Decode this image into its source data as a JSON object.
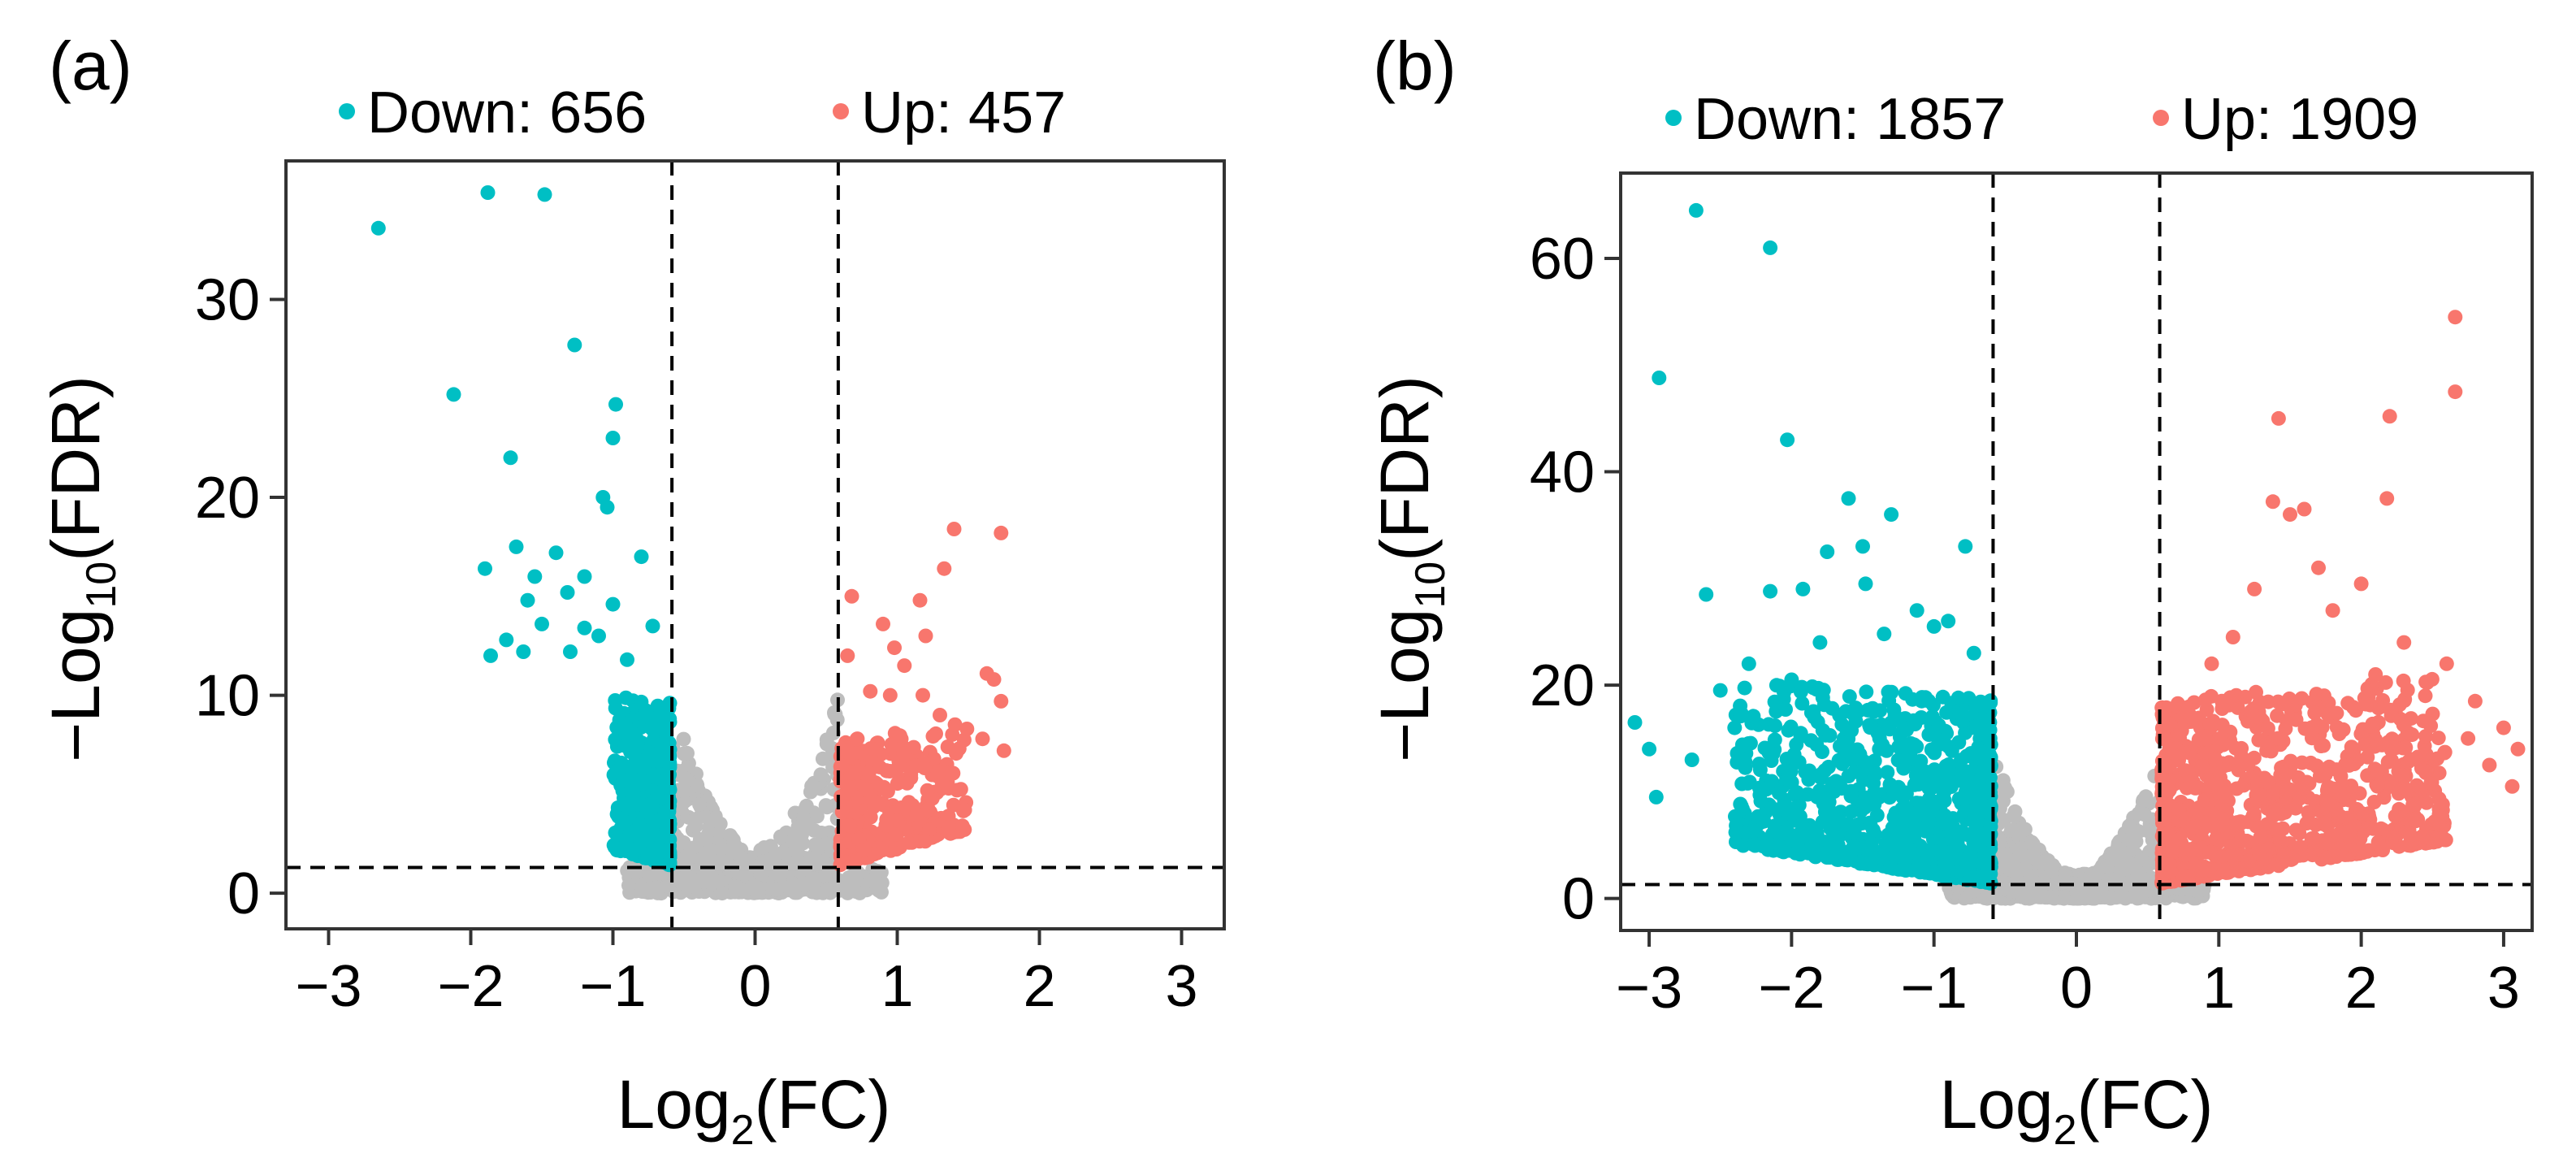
{
  "colors": {
    "down": "#00BFC4",
    "up": "#F8766D",
    "ns": "#BDBDBD"
  },
  "chart_data": [
    {
      "type": "scatter",
      "subtype": "volcano",
      "panel_label": "(a)",
      "legend": {
        "placement": "top",
        "down_label": "Down: 656",
        "up_label": "Up: 457"
      },
      "counts": {
        "down": 656,
        "up": 457
      },
      "xlabel": {
        "main": "Log",
        "sub": "2",
        "tail": "(FC)"
      },
      "ylabel": {
        "main": "−Log",
        "sub": "10",
        "tail": "(FDR)"
      },
      "xlim": [
        -3.3,
        3.3
      ],
      "ylim": [
        -1.8,
        37
      ],
      "xticks": [
        -3,
        -2,
        -1,
        0,
        1,
        2,
        3
      ],
      "xtick_labels": [
        "−3",
        "−2",
        "−1",
        "0",
        "1",
        "2",
        "3"
      ],
      "yticks": [
        0,
        10,
        20,
        30
      ],
      "ytick_labels": [
        "0",
        "10",
        "20",
        "30"
      ],
      "thresholds": {
        "log2fc": [
          -0.585,
          0.585
        ],
        "neg_log10_fdr": 1.3
      },
      "grid": false,
      "series": [
        {
          "name": "Down",
          "points": [
            [
              -2.65,
              33.6
            ],
            [
              -1.88,
              35.4
            ],
            [
              -1.48,
              35.3
            ],
            [
              -2.12,
              25.2
            ],
            [
              -1.27,
              27.7
            ],
            [
              -0.98,
              24.7
            ],
            [
              -1.0,
              23.0
            ],
            [
              -1.72,
              22.0
            ],
            [
              -1.07,
              20.0
            ],
            [
              -1.04,
              19.5
            ],
            [
              -0.8,
              17.0
            ],
            [
              -1.68,
              17.5
            ],
            [
              -1.9,
              16.4
            ],
            [
              -1.4,
              17.2
            ],
            [
              -1.2,
              16.0
            ],
            [
              -1.55,
              16.0
            ],
            [
              -1.32,
              15.2
            ],
            [
              -1.0,
              14.6
            ],
            [
              -0.72,
              13.5
            ],
            [
              -1.86,
              12.0
            ],
            [
              -1.63,
              12.2
            ],
            [
              -1.2,
              13.4
            ],
            [
              -1.1,
              13.0
            ],
            [
              -1.6,
              14.8
            ],
            [
              -1.5,
              13.6
            ],
            [
              -1.75,
              12.8
            ],
            [
              -1.3,
              12.2
            ],
            [
              -0.9,
              11.8
            ]
          ]
        },
        {
          "name": "Up",
          "points": [
            [
              1.73,
              18.2
            ],
            [
              1.4,
              18.4
            ],
            [
              1.33,
              16.4
            ],
            [
              0.68,
              15.0
            ],
            [
              1.16,
              14.8
            ],
            [
              1.2,
              13.0
            ],
            [
              0.98,
              12.4
            ],
            [
              0.9,
              13.6
            ],
            [
              1.63,
              11.1
            ],
            [
              1.68,
              10.8
            ],
            [
              1.73,
              9.7
            ],
            [
              1.05,
              11.5
            ],
            [
              0.81,
              10.2
            ],
            [
              1.18,
              10.0
            ],
            [
              1.3,
              9.0
            ],
            [
              1.49,
              8.3
            ],
            [
              1.6,
              7.8
            ],
            [
              1.75,
              7.2
            ],
            [
              0.65,
              12.0
            ],
            [
              0.95,
              10.0
            ]
          ]
        },
        {
          "name": "NS",
          "points": []
        }
      ],
      "dense_clusters": [
        {
          "series": "Down",
          "x": [
            -1.0,
            -0.6
          ],
          "y_max": 9.0,
          "n": 450
        },
        {
          "series": "Up",
          "x": [
            0.6,
            1.5
          ],
          "y_max": 7.0,
          "n": 330
        },
        {
          "series": "NS",
          "x": [
            -0.58,
            0.58
          ],
          "y_max": 10.0,
          "n": 500
        }
      ]
    },
    {
      "type": "scatter",
      "subtype": "volcano",
      "panel_label": "(b)",
      "legend": {
        "placement": "top",
        "down_label": "Down: 1857",
        "up_label": "Up: 1909"
      },
      "counts": {
        "down": 1857,
        "up": 1909
      },
      "xlabel": {
        "main": "Log",
        "sub": "2",
        "tail": "(FC)"
      },
      "ylabel": {
        "main": "−Log",
        "sub": "10",
        "tail": "(FDR)"
      },
      "xlim": [
        -3.2,
        3.2
      ],
      "ylim": [
        -3,
        68
      ],
      "xticks": [
        -3,
        -2,
        -1,
        0,
        1,
        2,
        3
      ],
      "xtick_labels": [
        "−3",
        "−2",
        "−1",
        "0",
        "1",
        "2",
        "3"
      ],
      "yticks": [
        0,
        20,
        40,
        60
      ],
      "ytick_labels": [
        "0",
        "20",
        "40",
        "60"
      ],
      "thresholds": {
        "log2fc": [
          -0.585,
          0.585
        ],
        "neg_log10_fdr": 1.3
      },
      "grid": false,
      "series": [
        {
          "name": "Down",
          "points": [
            [
              -2.67,
              64.5
            ],
            [
              -2.15,
              61.0
            ],
            [
              -2.93,
              48.8
            ],
            [
              -2.03,
              43.0
            ],
            [
              -1.6,
              37.5
            ],
            [
              -1.3,
              36.0
            ],
            [
              -0.78,
              33.0
            ],
            [
              -1.5,
              33.0
            ],
            [
              -1.75,
              32.5
            ],
            [
              -1.92,
              29.0
            ],
            [
              -2.6,
              28.5
            ],
            [
              -3.1,
              16.5
            ],
            [
              -3.0,
              14.0
            ],
            [
              -2.95,
              9.5
            ],
            [
              -2.15,
              28.8
            ],
            [
              -1.48,
              29.5
            ],
            [
              -1.12,
              27.0
            ],
            [
              -1.0,
              25.5
            ],
            [
              -0.9,
              26.0
            ],
            [
              -1.8,
              24.0
            ],
            [
              -2.3,
              22.0
            ],
            [
              -2.5,
              19.5
            ],
            [
              -2.0,
              20.5
            ],
            [
              -1.35,
              24.8
            ],
            [
              -0.72,
              23.0
            ],
            [
              -2.7,
              13.0
            ],
            [
              -2.4,
              16.0
            ]
          ]
        },
        {
          "name": "Up",
          "points": [
            [
              2.66,
              54.5
            ],
            [
              2.66,
              47.5
            ],
            [
              1.42,
              45.0
            ],
            [
              2.2,
              45.2
            ],
            [
              2.18,
              37.5
            ],
            [
              1.38,
              37.2
            ],
            [
              1.5,
              36.0
            ],
            [
              1.6,
              36.5
            ],
            [
              2.0,
              29.5
            ],
            [
              1.25,
              29.0
            ],
            [
              1.8,
              27.0
            ],
            [
              2.3,
              24.0
            ],
            [
              2.6,
              22.0
            ],
            [
              2.8,
              18.5
            ],
            [
              3.0,
              16.0
            ],
            [
              3.06,
              10.5
            ],
            [
              3.1,
              14.0
            ],
            [
              2.9,
              12.5
            ],
            [
              2.75,
              15.0
            ],
            [
              1.1,
              24.5
            ],
            [
              0.95,
              22.0
            ],
            [
              2.45,
              19.0
            ],
            [
              2.1,
              21.0
            ],
            [
              1.7,
              31.0
            ]
          ]
        },
        {
          "name": "NS",
          "points": []
        }
      ],
      "dense_clusters": [
        {
          "series": "Down",
          "x": [
            -2.4,
            -0.6
          ],
          "y_max": 18.0,
          "n": 900
        },
        {
          "series": "Up",
          "x": [
            0.6,
            2.6
          ],
          "y_max": 18.0,
          "n": 950
        },
        {
          "series": "NS",
          "x": [
            -0.58,
            0.58
          ],
          "y_max": 14.0,
          "n": 600
        }
      ]
    }
  ]
}
